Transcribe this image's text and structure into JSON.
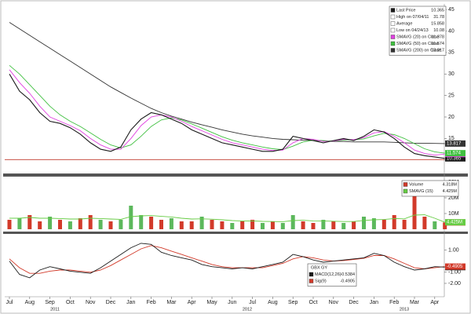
{
  "chart_data": [
    {
      "type": "line",
      "series": [
        {
          "name": "Last Price",
          "color": "#1a1a1a",
          "last": 10.365,
          "values": [
            30,
            26,
            24,
            21,
            19,
            18.5,
            17.5,
            16,
            14,
            12.5,
            12,
            13,
            17,
            19.5,
            21,
            20.5,
            19.5,
            18.5,
            17,
            16,
            15,
            14,
            13.5,
            13,
            12.5,
            12,
            12,
            12.5,
            15.5,
            15,
            14.5,
            14,
            14.5,
            15,
            14.5,
            15.5,
            17,
            16.5,
            15,
            13,
            11.5,
            11,
            10.7,
            10.365
          ]
        },
        {
          "name": "SMAVG (20) on Close",
          "color": "#e040e0",
          "last": 11.378,
          "values": [
            31,
            28,
            25.5,
            22.5,
            20,
            19,
            18,
            16.8,
            15,
            13.5,
            12.5,
            12.5,
            15,
            18,
            20,
            20.5,
            20,
            19,
            17.8,
            16.8,
            15.8,
            14.8,
            14,
            13.5,
            13,
            12.5,
            12.2,
            12.3,
            14,
            15,
            14.8,
            14.3,
            14.4,
            14.8,
            14.7,
            15.2,
            16.3,
            16.6,
            15.5,
            14,
            12.3,
            11.5,
            11.1,
            11.378
          ]
        },
        {
          "name": "SMAVG (50) on Close",
          "color": "#40c040",
          "last": 11.574,
          "values": [
            32,
            30,
            27.5,
            25,
            22.5,
            20.5,
            19,
            17.8,
            16.3,
            14.8,
            13.5,
            12.8,
            13.5,
            15.5,
            17.8,
            19.3,
            19.8,
            19.3,
            18.4,
            17.4,
            16.4,
            15.4,
            14.6,
            14,
            13.5,
            13,
            12.6,
            12.4,
            13.2,
            14.2,
            14.6,
            14.5,
            14.4,
            14.6,
            14.7,
            14.9,
            15.6,
            16.2,
            15.9,
            15,
            13.8,
            12.6,
            11.9,
            11.574
          ]
        },
        {
          "name": "SMAVG (200) on Close",
          "color": "#333333",
          "last": 13.817,
          "values": [
            42,
            40.5,
            39,
            37.5,
            36,
            34.5,
            33,
            31.5,
            30,
            28.5,
            27,
            25.7,
            24.4,
            23.2,
            22,
            21,
            20.2,
            19.5,
            18.8,
            18.2,
            17.6,
            17,
            16.5,
            16,
            15.6,
            15.3,
            15,
            14.8,
            14.7,
            14.6,
            14.5,
            14.4,
            14.3,
            14.3,
            14.2,
            14.2,
            14.2,
            14.2,
            14.1,
            14,
            13.9,
            13.9,
            13.85,
            13.817
          ]
        }
      ],
      "stats": [
        {
          "name": "High on 07/04/11",
          "value": 31.78
        },
        {
          "name": "Average",
          "value": 15.858
        },
        {
          "name": "Low on 04/24/13",
          "value": 10.08,
          "color": "#c0392b"
        }
      ],
      "ylim": [
        7.4,
        46.3
      ],
      "yticks": [
        10,
        15,
        20,
        25,
        30,
        35,
        40,
        45
      ]
    },
    {
      "type": "bar",
      "series": [
        {
          "name": "Volume",
          "color": "#d23a2a",
          "last": 4.318,
          "last_label": "4.318M",
          "values": [
            6,
            7,
            9,
            5,
            8,
            6,
            5,
            7,
            9,
            6,
            5,
            6,
            15,
            9,
            8,
            6,
            7,
            5,
            5,
            8,
            6,
            5,
            4,
            5,
            6,
            4,
            5,
            4,
            9,
            5,
            4,
            6,
            5,
            4,
            5,
            8,
            7,
            6,
            9,
            6,
            27,
            8,
            5,
            4.318
          ],
          "colors": [
            "#d23a2a",
            "#5cb85c",
            "#d23a2a",
            "#d23a2a",
            "#5cb85c",
            "#d23a2a",
            "#5cb85c",
            "#d23a2a",
            "#d23a2a",
            "#5cb85c",
            "#d23a2a",
            "#5cb85c",
            "#5cb85c",
            "#5cb85c",
            "#d23a2a",
            "#d23a2a",
            "#5cb85c",
            "#d23a2a",
            "#d23a2a",
            "#5cb85c",
            "#d23a2a",
            "#d23a2a",
            "#5cb85c",
            "#d23a2a",
            "#d23a2a",
            "#5cb85c",
            "#d23a2a",
            "#5cb85c",
            "#5cb85c",
            "#d23a2a",
            "#d23a2a",
            "#5cb85c",
            "#d23a2a",
            "#5cb85c",
            "#d23a2a",
            "#5cb85c",
            "#5cb85c",
            "#d23a2a",
            "#d23a2a",
            "#d23a2a",
            "#d23a2a",
            "#d23a2a",
            "#5cb85c",
            "#d23a2a"
          ]
        },
        {
          "name": "SMAVG (15)",
          "color": "#66cc44",
          "last": 4.425,
          "last_label": "4.425M",
          "values": [
            7,
            7,
            7.5,
            7,
            7,
            6.8,
            6.5,
            6.5,
            7,
            6.8,
            6.5,
            6.3,
            8,
            8.5,
            8.7,
            8.2,
            7.8,
            7,
            6.5,
            6.6,
            6.4,
            6,
            5.5,
            5.2,
            5.3,
            5,
            4.9,
            4.8,
            5.5,
            5.7,
            5.3,
            5.2,
            5.1,
            4.9,
            4.9,
            5.6,
            6,
            6.2,
            6.8,
            6.6,
            9,
            9.2,
            7,
            4.425
          ]
        }
      ],
      "ylim": [
        0,
        32
      ],
      "yticks": [
        {
          "value": 10,
          "label": "10M"
        },
        {
          "value": 20,
          "label": "20M"
        },
        {
          "value": 30,
          "label": "30M"
        }
      ]
    },
    {
      "type": "line",
      "title": "GBX GY",
      "series": [
        {
          "name": "MACD(12,26)",
          "color": "#1a1a1a",
          "last": -0.5384,
          "values": [
            0,
            -1.2,
            -1.5,
            -0.8,
            -0.5,
            -0.7,
            -0.9,
            -1,
            -1.1,
            -0.6,
            0,
            0.6,
            1.2,
            1.6,
            1.5,
            0.8,
            0.5,
            0.3,
            0.1,
            -0.3,
            -0.5,
            -0.6,
            -0.7,
            -0.6,
            -0.7,
            -0.5,
            -0.3,
            -0.1,
            0.6,
            0.4,
            0.1,
            -0.1,
            0,
            0.1,
            0.2,
            0.3,
            0.7,
            0.5,
            -0.1,
            -0.5,
            -0.8,
            -0.7,
            -0.5,
            -0.5384
          ]
        },
        {
          "name": "Sig(9)",
          "color": "#d23a2a",
          "last": -0.4905,
          "values": [
            0.2,
            -0.6,
            -1.1,
            -1.1,
            -0.9,
            -0.8,
            -0.8,
            -0.9,
            -1,
            -0.8,
            -0.4,
            0.1,
            0.6,
            1.1,
            1.4,
            1.2,
            0.9,
            0.6,
            0.3,
            0,
            -0.3,
            -0.5,
            -0.6,
            -0.6,
            -0.6,
            -0.6,
            -0.4,
            -0.2,
            0.2,
            0.4,
            0.3,
            0.1,
            0,
            0.05,
            0.15,
            0.25,
            0.5,
            0.5,
            0.2,
            -0.2,
            -0.6,
            -0.7,
            -0.6,
            -0.4905
          ]
        }
      ],
      "ylim": [
        -3.2,
        2.3
      ],
      "yticks": [
        {
          "value": 1,
          "label": "1.00"
        },
        {
          "value": -1,
          "label": "-1.00"
        },
        {
          "value": -2,
          "label": "-2.00"
        }
      ],
      "categories": [
        "Jul",
        null,
        "Aug",
        null,
        "Sep",
        null,
        "Oct",
        null,
        "Nov",
        null,
        "Dec",
        null,
        "Jan",
        null,
        "Feb",
        null,
        "Mar",
        null,
        "Apr",
        null,
        "May",
        null,
        "Jun",
        null,
        "Jul",
        null,
        "Aug",
        null,
        "Sep",
        null,
        "Oct",
        null,
        "Nov",
        null,
        "Dec",
        null,
        "Jan",
        null,
        "Feb",
        null,
        "Mar",
        null,
        "Apr",
        null
      ],
      "years": [
        "2011",
        "2012",
        "2013"
      ]
    }
  ]
}
